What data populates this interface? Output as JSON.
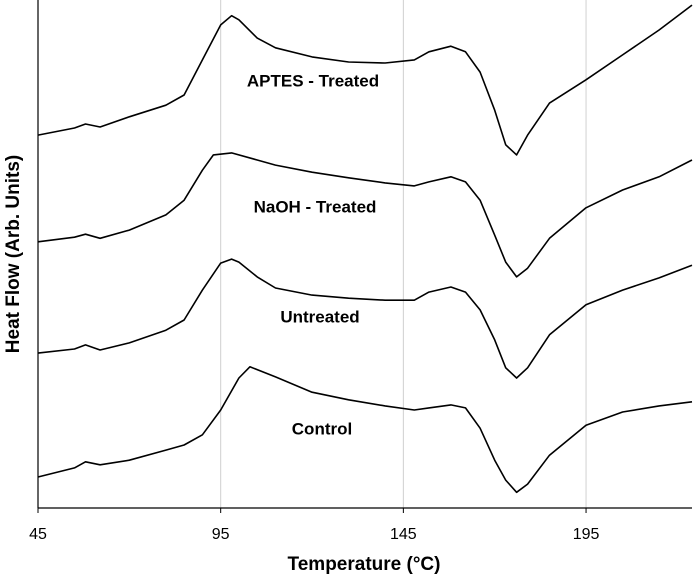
{
  "chart_data": {
    "type": "line",
    "x_label": "Temperature (°C)",
    "y_label": "Heat Flow (Arb. Units)",
    "xlim": [
      45,
      224
    ],
    "xticks": [
      45,
      95,
      145,
      195
    ],
    "ylim": [
      0,
      100
    ],
    "grid": true,
    "series": [
      {
        "name": "APTES - Treated",
        "color": "#000000",
        "x": [
          45,
          55,
          58,
          62,
          70,
          80,
          85,
          90,
          95,
          98,
          100,
          105,
          110,
          120,
          130,
          140,
          148,
          152,
          158,
          162,
          166,
          170,
          173,
          176,
          179,
          185,
          195,
          205,
          215,
          224
        ],
        "values": [
          73.4,
          74.8,
          75.6,
          75.0,
          77.0,
          79.3,
          81.3,
          88.2,
          95.1,
          96.9,
          96.1,
          92.5,
          90.6,
          88.8,
          87.8,
          87.6,
          88.2,
          89.8,
          90.9,
          89.8,
          85.8,
          78.3,
          71.5,
          69.5,
          73.4,
          79.7,
          84.3,
          89.2,
          94.1,
          99.0
        ]
      },
      {
        "name": "NaOH - Treated",
        "color": "#000000",
        "x": [
          45,
          55,
          58,
          62,
          70,
          80,
          85,
          90,
          93,
          98,
          105,
          110,
          120,
          130,
          140,
          148,
          152,
          158,
          162,
          166,
          170,
          173,
          176,
          179,
          185,
          195,
          205,
          215,
          224
        ],
        "values": [
          52.4,
          53.3,
          53.9,
          53.1,
          54.7,
          57.7,
          60.6,
          66.5,
          69.5,
          69.9,
          68.5,
          67.5,
          66.1,
          65.0,
          64.0,
          63.4,
          64.2,
          65.2,
          64.2,
          60.6,
          53.7,
          48.4,
          45.5,
          47.2,
          53.1,
          59.1,
          62.6,
          65.2,
          68.5
        ]
      },
      {
        "name": "Untreated",
        "color": "#000000",
        "x": [
          45,
          55,
          58,
          62,
          70,
          80,
          85,
          90,
          95,
          98,
          100,
          105,
          110,
          120,
          130,
          140,
          148,
          152,
          158,
          162,
          166,
          170,
          173,
          176,
          179,
          185,
          195,
          205,
          215,
          224
        ],
        "values": [
          30.5,
          31.3,
          32.1,
          31.1,
          32.5,
          35.0,
          37.0,
          42.9,
          48.2,
          49.0,
          48.4,
          45.5,
          43.3,
          41.9,
          41.3,
          40.9,
          40.9,
          42.5,
          43.5,
          42.5,
          39.0,
          33.1,
          27.6,
          25.6,
          27.6,
          34.1,
          40.0,
          42.9,
          45.3,
          47.8
        ]
      },
      {
        "name": "Control",
        "color": "#000000",
        "x": [
          45,
          55,
          58,
          62,
          70,
          80,
          85,
          90,
          95,
          100,
          103,
          110,
          120,
          130,
          140,
          148,
          152,
          158,
          162,
          166,
          170,
          173,
          176,
          179,
          185,
          195,
          205,
          215,
          224
        ],
        "values": [
          6.1,
          7.9,
          9.1,
          8.5,
          9.4,
          11.4,
          12.4,
          14.4,
          19.3,
          25.6,
          27.8,
          25.8,
          22.8,
          21.3,
          20.1,
          19.3,
          19.7,
          20.3,
          19.7,
          15.7,
          9.4,
          5.5,
          3.1,
          4.7,
          10.4,
          16.3,
          18.9,
          20.1,
          20.9
        ]
      }
    ]
  }
}
